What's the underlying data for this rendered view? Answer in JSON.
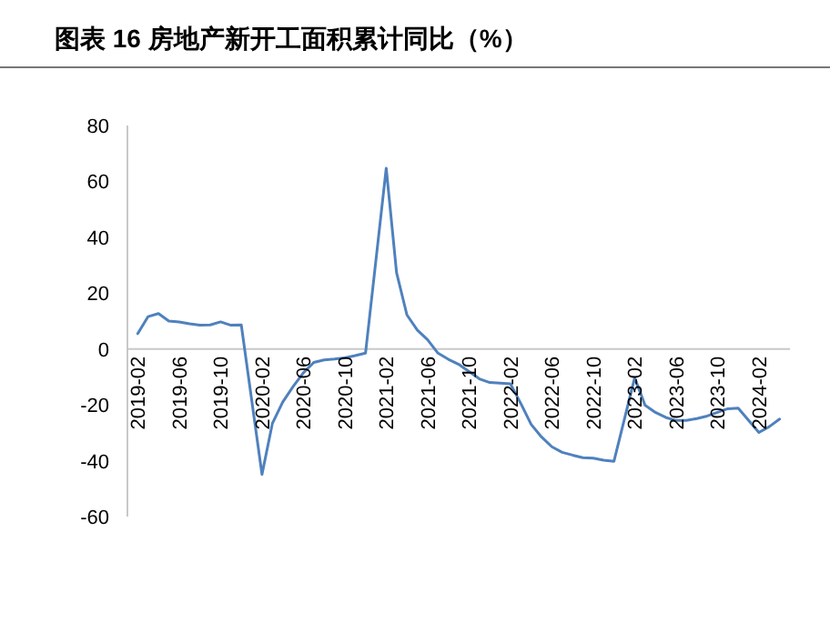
{
  "chart_data": {
    "type": "line",
    "title": "图表 16 房地产新开工面积累计同比（%）",
    "x": [
      "2019-02",
      "2019-03",
      "2019-04",
      "2019-05",
      "2019-06",
      "2019-07",
      "2019-08",
      "2019-09",
      "2019-10",
      "2019-11",
      "2019-12",
      "2020-02",
      "2020-03",
      "2020-04",
      "2020-05",
      "2020-06",
      "2020-07",
      "2020-08",
      "2020-09",
      "2020-10",
      "2020-11",
      "2020-12",
      "2021-02",
      "2021-03",
      "2021-04",
      "2021-05",
      "2021-06",
      "2021-07",
      "2021-08",
      "2021-09",
      "2021-10",
      "2021-11",
      "2021-12",
      "2022-02",
      "2022-03",
      "2022-04",
      "2022-05",
      "2022-06",
      "2022-07",
      "2022-08",
      "2022-09",
      "2022-10",
      "2022-11",
      "2022-12",
      "2023-02",
      "2023-03",
      "2023-04",
      "2023-05",
      "2023-06",
      "2023-07",
      "2023-08",
      "2023-09",
      "2023-10",
      "2023-11",
      "2023-12",
      "2024-02",
      "2024-03",
      "2024-04"
    ],
    "series": [
      {
        "color": "#4f81bd",
        "values": [
          5.5,
          11.6,
          12.7,
          10,
          9.7,
          9,
          8.5,
          8.6,
          9.7,
          8.5,
          8.6,
          -44.9,
          -26.7,
          -19,
          -13.5,
          -8.5,
          -4.8,
          -3.9,
          -3.6,
          -3.2,
          -2.4,
          -1.5,
          64.7,
          27.3,
          12.2,
          6.8,
          3.3,
          -1.5,
          -3.7,
          -5.5,
          -8.1,
          -10.7,
          -12,
          -12.5,
          -19.5,
          -27,
          -31.5,
          -35,
          -37,
          -38,
          -38.9,
          -39.1,
          -39.8,
          -40.2,
          -10.3,
          -20.1,
          -22.7,
          -24.5,
          -25.6,
          -25.6,
          -24.9,
          -24,
          -22.7,
          -21.4,
          -21.2,
          -29.9,
          -27.8,
          -25.1
        ]
      }
    ],
    "xlim": [
      "2019-01",
      "2024-05"
    ],
    "xticks": [
      "2019-02",
      "2019-06",
      "2019-10",
      "2020-02",
      "2020-06",
      "2020-10",
      "2021-02",
      "2021-06",
      "2021-10",
      "2022-02",
      "2022-06",
      "2022-10",
      "2023-02",
      "2023-06",
      "2023-10",
      "2024-02"
    ],
    "ylim": [
      -60,
      80
    ],
    "yticks": [
      -60,
      -40,
      -20,
      0,
      20,
      40,
      60,
      80
    ],
    "grid": false,
    "marker": "none",
    "line_style": "solid"
  }
}
